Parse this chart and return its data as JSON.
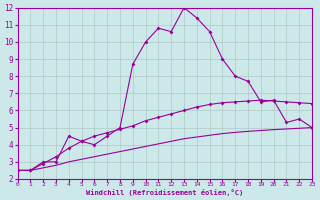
{
  "x": [
    0,
    1,
    2,
    3,
    4,
    5,
    6,
    7,
    8,
    9,
    10,
    11,
    12,
    13,
    14,
    15,
    16,
    17,
    18,
    19,
    20,
    21,
    22,
    23
  ],
  "line1": [
    2.5,
    2.5,
    3.0,
    3.0,
    4.5,
    4.2,
    4.0,
    4.5,
    5.0,
    8.7,
    10.0,
    10.8,
    10.6,
    12.0,
    11.4,
    10.6,
    9.0,
    8.0,
    7.7,
    6.5,
    6.6,
    5.3,
    5.5,
    5.0
  ],
  "line2": [
    2.5,
    2.5,
    2.9,
    3.3,
    3.8,
    4.2,
    4.5,
    4.7,
    4.9,
    5.1,
    5.4,
    5.6,
    5.8,
    6.0,
    6.2,
    6.35,
    6.45,
    6.5,
    6.55,
    6.6,
    6.55,
    6.5,
    6.45,
    6.4
  ],
  "line3": [
    2.5,
    2.5,
    2.65,
    2.8,
    3.0,
    3.15,
    3.3,
    3.45,
    3.6,
    3.75,
    3.9,
    4.05,
    4.2,
    4.35,
    4.45,
    4.55,
    4.65,
    4.72,
    4.78,
    4.83,
    4.88,
    4.92,
    4.96,
    5.0
  ],
  "color": "#990099",
  "bg_color": "#cce8e8",
  "grid_color": "#b0c8c8",
  "xlabel": "Windchill (Refroidissement éolien,°C)",
  "xlim": [
    0,
    23
  ],
  "ylim": [
    2,
    12
  ],
  "yticks": [
    2,
    3,
    4,
    5,
    6,
    7,
    8,
    9,
    10,
    11,
    12
  ],
  "xticks": [
    0,
    1,
    2,
    3,
    4,
    5,
    6,
    7,
    8,
    9,
    10,
    11,
    12,
    13,
    14,
    15,
    16,
    17,
    18,
    19,
    20,
    21,
    22,
    23
  ]
}
